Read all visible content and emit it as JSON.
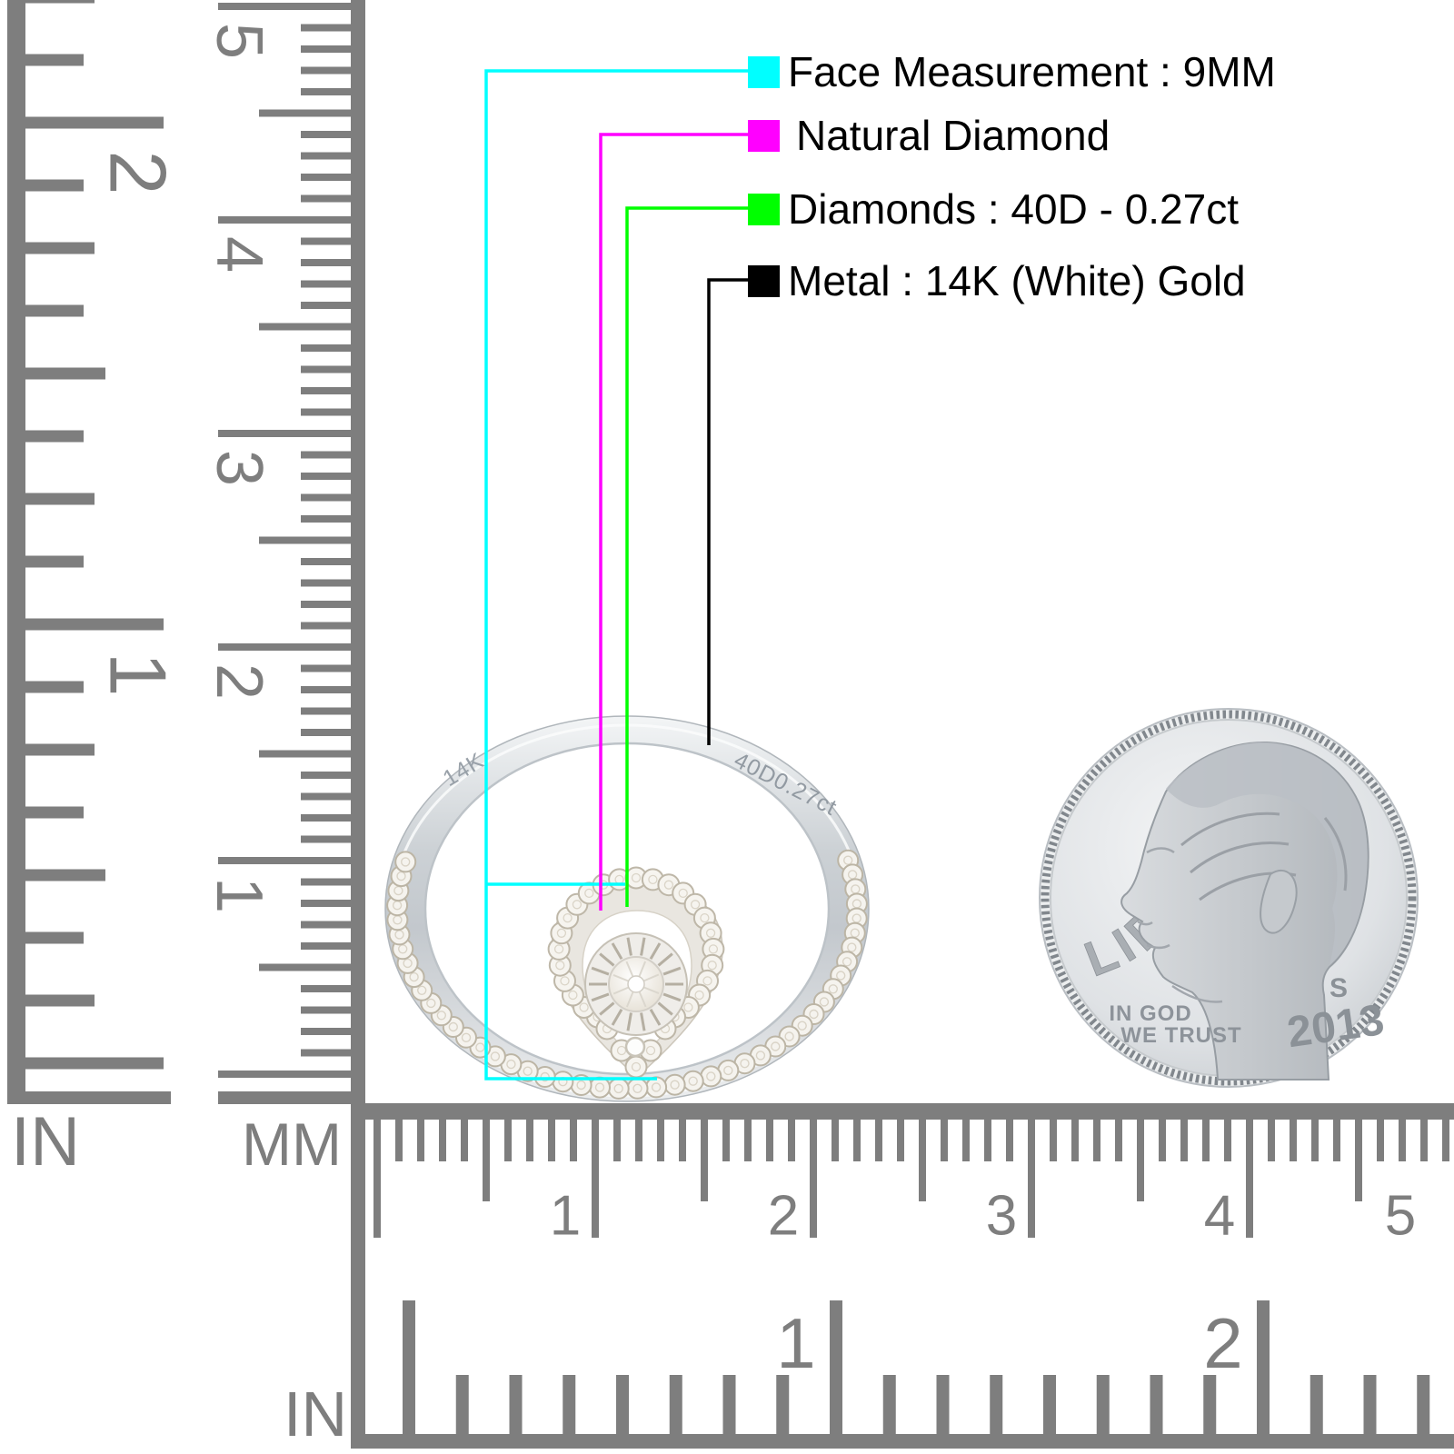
{
  "legend": {
    "items": [
      {
        "label": "Face Measurement : 9MM",
        "color": "#00FFFF"
      },
      {
        "label": "Natural Diamond",
        "color": "#FF00FF"
      },
      {
        "label": "Diamonds : 40D - 0.27ct",
        "color": "#00FF00"
      },
      {
        "label": "Metal : 14K (White) Gold",
        "color": "#000000"
      }
    ]
  },
  "rulers": {
    "tick_color": "#7e7e7e",
    "left_inch": {
      "unit_label": "IN",
      "numbers": [
        "2",
        "1"
      ]
    },
    "left_mm": {
      "unit_label": "MM",
      "numbers": [
        "5",
        "4",
        "3",
        "2",
        "1"
      ]
    },
    "bottom_mm": {
      "numbers": [
        "1",
        "2",
        "3",
        "4",
        "5"
      ]
    },
    "bottom_inch": {
      "unit_label": "IN",
      "numbers": [
        "1",
        "2"
      ]
    }
  },
  "ring": {
    "engraving_left": "14K",
    "engraving_right": "40D0.27ct"
  },
  "coin": {
    "legend_text": "LIBERTY",
    "motto_line1": "IN GOD",
    "motto_line2": "WE TRUST",
    "mint_mark": "S",
    "year": "2013"
  }
}
